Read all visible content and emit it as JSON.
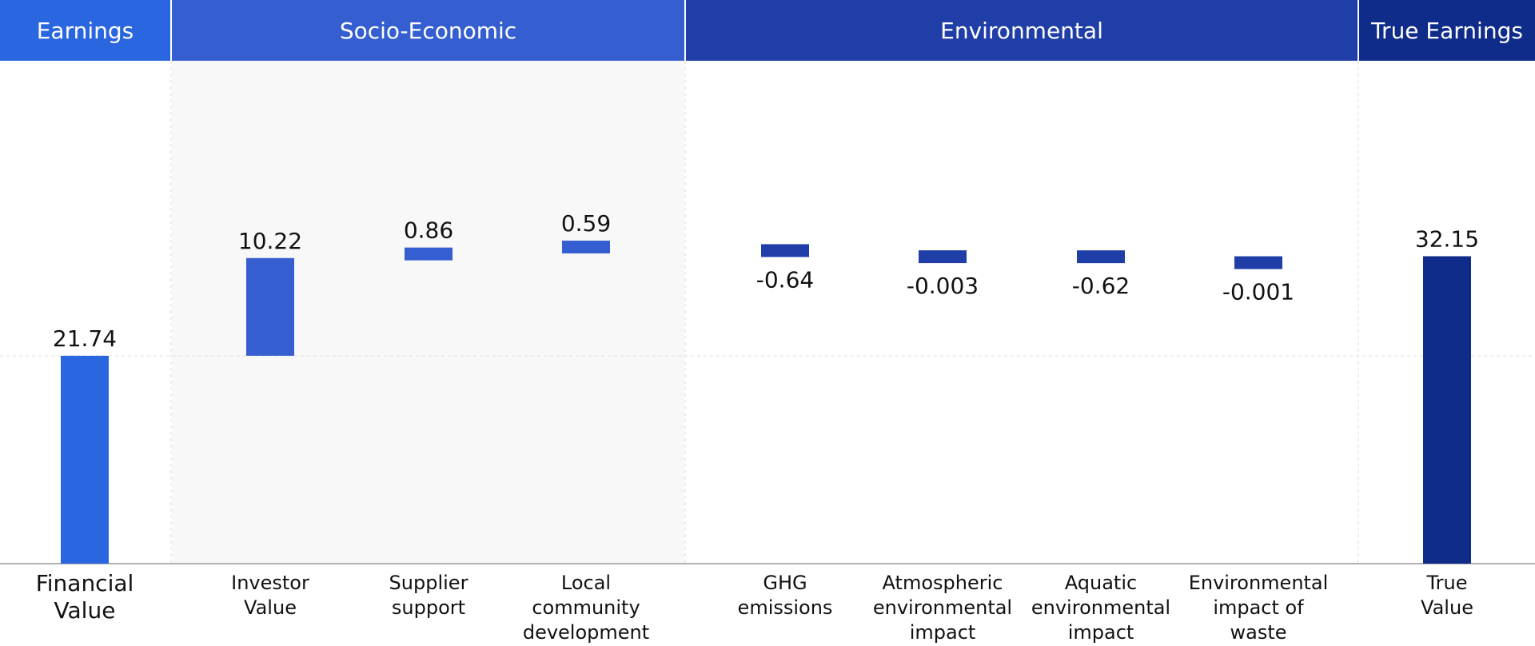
{
  "headers": [
    {
      "label": "Earnings",
      "color": "#2a66e0"
    },
    {
      "label": "Socio-Economic",
      "color": "#355fd0"
    },
    {
      "label": "Environmental",
      "color": "#1f3ea8"
    },
    {
      "label": "True Earnings",
      "color": "#102c8a"
    }
  ],
  "colors": {
    "financial": "#2a66e0",
    "socio": "#355fd0",
    "environmental": "#1f3ea8",
    "true": "#102c8a",
    "socio_panel_bg": "#f8f8f8",
    "grid": "#dddddd",
    "axis": "#999999"
  },
  "chart_data": {
    "type": "bar",
    "subtype": "waterfall",
    "ylim": [
      0,
      35
    ],
    "grid": "dashed reference at financial value",
    "categories": [
      [
        "Financial",
        "Value"
      ],
      [
        "Investor",
        "Value"
      ],
      [
        "Supplier",
        "support"
      ],
      [
        "Local",
        "community",
        "development"
      ],
      [
        "GHG",
        "emissions"
      ],
      [
        "Atmospheric",
        "environmental",
        "impact"
      ],
      [
        "Aquatic",
        "environmental",
        "impact"
      ],
      [
        "Environmental",
        "impact of",
        "waste"
      ],
      [
        "True",
        "Value"
      ]
    ],
    "values": [
      21.74,
      10.22,
      0.86,
      0.59,
      -0.64,
      -0.003,
      -0.62,
      -0.001,
      32.15
    ],
    "labels": [
      "21.74",
      "10.22",
      "0.86",
      "0.59",
      "-0.64",
      "-0.003",
      "-0.62",
      "-0.001",
      "32.15"
    ],
    "kinds": [
      "total",
      "delta",
      "delta",
      "delta",
      "delta",
      "delta",
      "delta",
      "delta",
      "total"
    ],
    "groups": [
      "Earnings",
      "Socio-Economic",
      "Socio-Economic",
      "Socio-Economic",
      "Environmental",
      "Environmental",
      "Environmental",
      "Environmental",
      "True Earnings"
    ]
  }
}
